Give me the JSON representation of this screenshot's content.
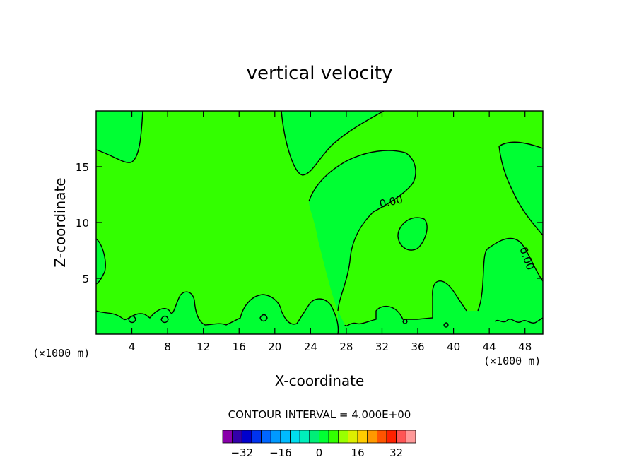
{
  "chart_data": {
    "type": "contour",
    "title": "vertical velocity",
    "xlabel": "X-coordinate",
    "ylabel": "Z-coordinate",
    "x_unit": "(×1000 m)",
    "z_unit": "(×1000 m)",
    "xlim": [
      0,
      50
    ],
    "ylim": [
      0,
      20
    ],
    "x_ticks": [
      4,
      8,
      12,
      16,
      20,
      24,
      28,
      32,
      36,
      40,
      44,
      48
    ],
    "y_ticks": [
      5,
      10,
      15
    ],
    "contour_interval_text": "CONTOUR INTERVAL = 4.000E+00",
    "contour_label": "0.00",
    "colorbar": {
      "levels": [
        -36,
        -32,
        -28,
        -24,
        -20,
        -16,
        -12,
        -8,
        -4,
        0,
        4,
        8,
        12,
        16,
        20,
        24,
        28,
        32,
        36
      ],
      "colors": [
        "#8800aa",
        "#3300aa",
        "#0000cc",
        "#0033ee",
        "#0066ff",
        "#0099ff",
        "#00bbff",
        "#00ddee",
        "#00eebb",
        "#00ee77",
        "#00ff33",
        "#33ff00",
        "#99ff00",
        "#ddee00",
        "#ffcc00",
        "#ff9900",
        "#ff5500",
        "#ff2200",
        "#ff5555",
        "#ff9999"
      ],
      "tick_labels": [
        "-32",
        "-16",
        "0",
        "16",
        "32"
      ]
    },
    "fill_colors": {
      "positive": "#33ff00",
      "zero_to_neg": "#00ff33"
    }
  }
}
